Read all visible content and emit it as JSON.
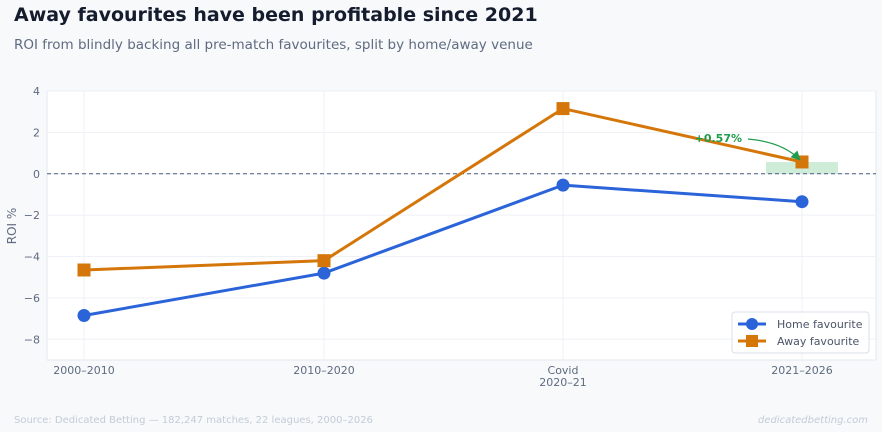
{
  "title": "Away favourites have been profitable since 2021",
  "subtitle": "ROI from blindly backing all pre-match favourites, split by home/away venue",
  "source": "Source: Dedicated Betting — 182,247 matches, 22 leagues, 2000–2026",
  "brand": "dedicatedbetting.com",
  "colors": {
    "home": "#2b63d9",
    "away": "#d4760a",
    "annotation": "#1f9d4b",
    "highlight": "#a8dcb8"
  },
  "chart_data": {
    "type": "line",
    "categories": [
      [
        "2000–2010"
      ],
      [
        "2010–2020"
      ],
      [
        "Covid",
        "2020–21"
      ],
      [
        "2021–2026"
      ]
    ],
    "ylabel": "ROI %",
    "ylim": [
      -9,
      4
    ],
    "yticks": [
      4,
      2,
      0,
      -2,
      -4,
      -6,
      -8
    ],
    "ytick_labels": [
      "4",
      "2",
      "0",
      "−2",
      "−4",
      "−6",
      "−8"
    ],
    "grid": true,
    "zero_line": true,
    "legend_position": "lower-right",
    "series": [
      {
        "name": "Home favourite",
        "marker": "circle",
        "values": [
          -6.85,
          -4.8,
          -0.55,
          -1.35
        ]
      },
      {
        "name": "Away favourite",
        "marker": "square",
        "values": [
          -4.65,
          -4.2,
          3.15,
          0.57
        ]
      }
    ],
    "annotation": {
      "text": "+0.57%",
      "category_index": 3,
      "value": 0.57
    }
  }
}
